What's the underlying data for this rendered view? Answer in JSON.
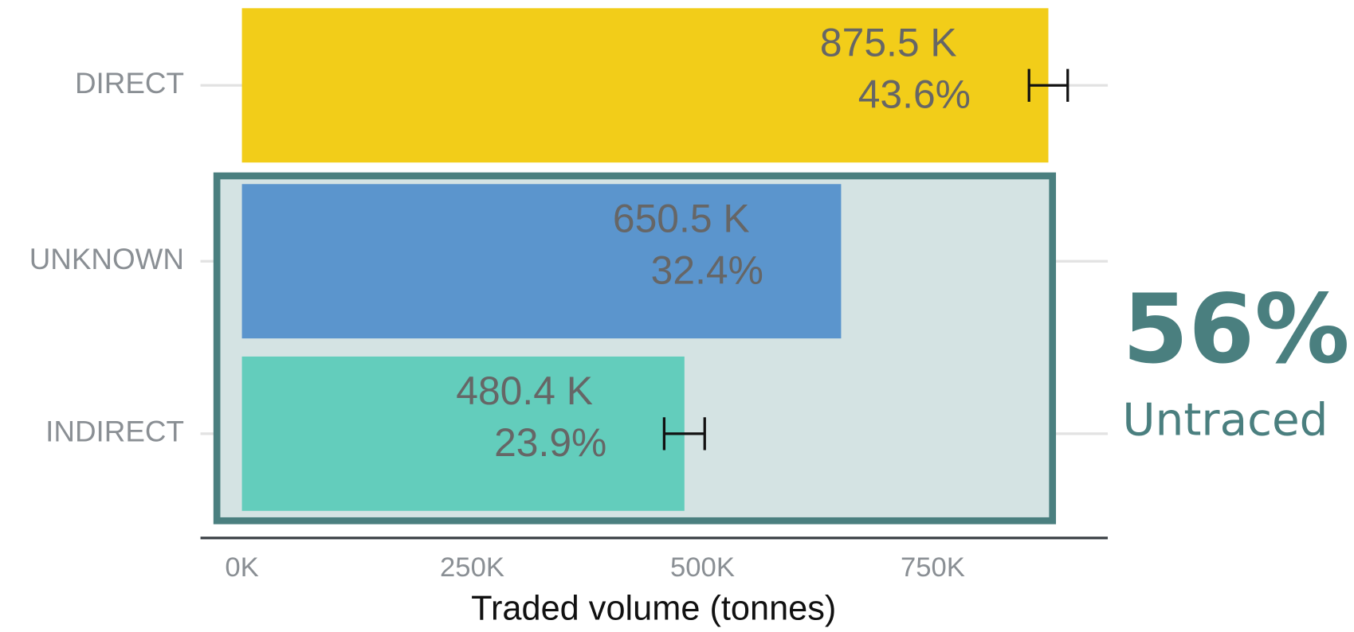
{
  "chart_data": {
    "type": "bar",
    "orientation": "horizontal",
    "categories": [
      "DIRECT",
      "UNKNOWN",
      "INDIRECT"
    ],
    "values": [
      875500,
      650500,
      480400
    ],
    "value_labels": [
      "875.5 K",
      "650.5 K",
      "480.4 K"
    ],
    "shares": [
      43.6,
      32.4,
      23.9
    ],
    "share_labels": [
      "43.6%",
      "32.4%",
      "23.9%"
    ],
    "errors": [
      21000,
      null,
      22000
    ],
    "colors": [
      "#f2cd19",
      "#5b95cd",
      "#63cdbc"
    ],
    "xlabel": "Traded volume (tonnes)",
    "xlim": [
      -45000,
      940000
    ],
    "xticks": [
      {
        "value": 0,
        "label": "0K"
      },
      {
        "value": 250000,
        "label": "250K"
      },
      {
        "value": 500000,
        "label": "500K"
      },
      {
        "value": 750000,
        "label": "750K"
      }
    ],
    "grid": true,
    "annotation": {
      "text": "56%",
      "subtext": "Untraced"
    }
  }
}
